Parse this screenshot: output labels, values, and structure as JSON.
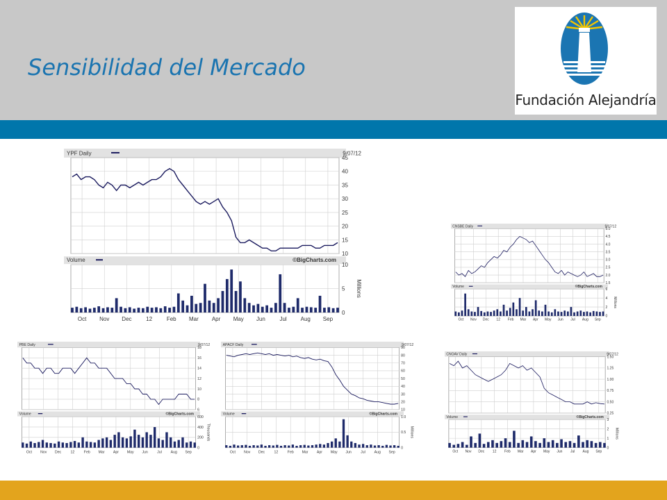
{
  "slide": {
    "title": "Sensibilidad del Mercado",
    "logo_text": "Fundación Alejandría",
    "colors": {
      "header": "#c8c8c8",
      "title": "#1a74b0",
      "band": "#0076ab",
      "footer": "#e3a41d",
      "series": "#1a1a5e",
      "volume": "#1e2a6a"
    }
  },
  "chart_data": [
    {
      "type": "line",
      "title": "YPF Daily",
      "date": "9/07/12",
      "volume_title": "Volume",
      "credit": "©BigCharts.com",
      "unit": "Millions",
      "months": [
        "Oct",
        "Nov",
        "Dec",
        "12",
        "Feb",
        "Mar",
        "Apr",
        "May",
        "Jun",
        "Jul",
        "Aug",
        "Sep"
      ],
      "price_ticks": [
        "45",
        "40",
        "35",
        "30",
        "25",
        "20",
        "15",
        "10"
      ],
      "ylim": [
        10,
        45
      ],
      "volume_ticks": [
        "10",
        "5",
        "0"
      ],
      "vlim": [
        0,
        10
      ],
      "y": [
        38,
        39,
        37,
        38,
        38,
        37,
        35,
        34,
        36,
        35,
        33,
        35,
        35,
        34,
        35,
        36,
        35,
        36,
        37,
        37,
        38,
        40,
        41,
        40,
        37,
        35,
        33,
        31,
        29,
        28,
        29,
        28,
        29,
        30,
        27,
        25,
        22,
        16,
        14,
        14,
        15,
        14,
        13,
        12,
        12,
        11,
        11,
        12,
        12,
        12,
        12,
        12,
        13,
        13,
        13,
        12,
        12,
        13,
        13,
        13,
        14
      ],
      "volume": [
        1.0,
        1.2,
        0.9,
        1.1,
        0.8,
        1.0,
        1.3,
        0.9,
        1.1,
        1.0,
        3.0,
        1.2,
        0.9,
        1.1,
        0.8,
        1.0,
        0.9,
        1.2,
        1.0,
        1.1,
        0.9,
        1.3,
        1.0,
        1.2,
        4.0,
        2.5,
        1.5,
        3.5,
        1.8,
        2.0,
        6.0,
        2.5,
        2.0,
        3.0,
        4.5,
        7.0,
        9.0,
        4.5,
        6.5,
        3.0,
        2.0,
        1.5,
        1.8,
        1.2,
        1.5,
        1.0,
        2.0,
        8.0,
        2.0,
        1.0,
        1.2,
        3.0,
        1.0,
        1.2,
        1.1,
        1.0,
        3.5,
        1.0,
        1.1,
        0.9,
        1.0
      ]
    },
    {
      "type": "line",
      "title": "CNSBE Daily",
      "date": "9/07/12",
      "volume_title": "Volume",
      "credit": "©BigCharts.com",
      "unit": "Millions",
      "months": [
        "Oct",
        "Nov",
        "Dec",
        "12",
        "Feb",
        "Mar",
        "Apr",
        "May",
        "Jun",
        "Jul",
        "Aug",
        "Sep"
      ],
      "price_ticks": [
        "5.0",
        "4.5",
        "4.0",
        "3.5",
        "3.0",
        "2.5",
        "2.0",
        "1.5"
      ],
      "ylim": [
        1.5,
        5.0
      ],
      "volume_ticks": [
        "6",
        "4",
        "2",
        "0"
      ],
      "vlim": [
        0,
        6
      ],
      "y": [
        2.2,
        2.0,
        2.1,
        1.9,
        2.3,
        2.1,
        2.2,
        2.4,
        2.6,
        2.5,
        2.8,
        3.0,
        3.2,
        3.1,
        3.3,
        3.6,
        3.5,
        3.8,
        4.0,
        4.3,
        4.5,
        4.4,
        4.3,
        4.1,
        4.2,
        3.9,
        3.6,
        3.3,
        3.0,
        2.8,
        2.5,
        2.2,
        2.1,
        2.3,
        2.0,
        2.2,
        2.1,
        2.0,
        1.9,
        2.0,
        2.2,
        1.9,
        2.0,
        2.1,
        1.9,
        1.9,
        2.0
      ],
      "volume": [
        1.0,
        0.8,
        1.2,
        5.0,
        1.5,
        1.0,
        0.9,
        2.0,
        1.1,
        0.8,
        1.0,
        0.9,
        1.2,
        1.5,
        1.0,
        2.5,
        1.2,
        1.8,
        3.0,
        1.5,
        4.0,
        1.2,
        2.0,
        1.0,
        1.5,
        3.5,
        1.2,
        1.0,
        2.5,
        1.0,
        0.8,
        1.5,
        1.0,
        0.9,
        1.2,
        1.0,
        2.0,
        0.8,
        1.0,
        1.2,
        0.9,
        1.0,
        0.8,
        1.1,
        1.0,
        0.9,
        1.0
      ]
    },
    {
      "type": "line",
      "title": "PBE Daily",
      "date": "9/07/12",
      "volume_title": "Volume",
      "credit": "©BigCharts.com",
      "unit": "Thousands",
      "months": [
        "Oct",
        "Nov",
        "Dec",
        "12",
        "Feb",
        "Mar",
        "Apr",
        "May",
        "Jun",
        "Jul",
        "Aug",
        "Sep"
      ],
      "price_ticks": [
        "18",
        "16",
        "14",
        "12",
        "10",
        "8",
        "6"
      ],
      "ylim": [
        6,
        18
      ],
      "volume_ticks": [
        "600",
        "400",
        "200",
        "0"
      ],
      "vlim": [
        0,
        600
      ],
      "y": [
        16,
        15,
        15,
        14,
        14,
        13,
        14,
        14,
        13,
        13,
        14,
        14,
        14,
        13,
        14,
        15,
        16,
        15,
        15,
        14,
        14,
        14,
        13,
        12,
        12,
        12,
        11,
        11,
        10,
        10,
        9,
        9,
        8,
        8,
        7,
        8,
        8,
        8,
        8,
        9,
        9,
        9,
        8,
        8
      ],
      "volume": [
        100,
        80,
        120,
        90,
        110,
        150,
        100,
        90,
        80,
        120,
        100,
        90,
        110,
        130,
        100,
        200,
        120,
        110,
        100,
        150,
        180,
        200,
        150,
        250,
        300,
        200,
        180,
        220,
        350,
        250,
        200,
        300,
        250,
        400,
        180,
        150,
        300,
        200,
        120,
        150,
        200,
        100,
        120,
        100
      ]
    },
    {
      "type": "line",
      "title": "APACF Daily",
      "date": "9/07/12",
      "volume_title": "Volume",
      "credit": "©BigCharts.com",
      "unit": "Millions",
      "months": [
        "Oct",
        "Nov",
        "Dec",
        "12",
        "Feb",
        "Mar",
        "Apr",
        "May",
        "Jun",
        "Jul",
        "Aug",
        "Sep"
      ],
      "price_ticks": [
        "90",
        "80",
        "70",
        "60",
        "50",
        "40",
        "30",
        "20",
        "10"
      ],
      "ylim": [
        10,
        90
      ],
      "volume_ticks": [
        "1.0",
        "0.5",
        "0"
      ],
      "vlim": [
        0,
        1.0
      ],
      "y": [
        80,
        79,
        78,
        80,
        81,
        82,
        81,
        82,
        83,
        82,
        81,
        82,
        80,
        81,
        80,
        79,
        80,
        78,
        79,
        77,
        76,
        77,
        75,
        74,
        75,
        73,
        72,
        65,
        55,
        48,
        40,
        35,
        30,
        28,
        25,
        24,
        22,
        21,
        20,
        20,
        19,
        18,
        17,
        17,
        18
      ],
      "volume": [
        0.08,
        0.06,
        0.1,
        0.07,
        0.08,
        0.09,
        0.06,
        0.08,
        0.07,
        0.1,
        0.06,
        0.08,
        0.07,
        0.09,
        0.06,
        0.08,
        0.07,
        0.1,
        0.06,
        0.08,
        0.09,
        0.07,
        0.08,
        0.1,
        0.12,
        0.1,
        0.15,
        0.2,
        0.3,
        0.2,
        0.92,
        0.4,
        0.2,
        0.15,
        0.1,
        0.12,
        0.08,
        0.1,
        0.07,
        0.08,
        0.06,
        0.09,
        0.07,
        0.08,
        0.06
      ]
    },
    {
      "type": "line",
      "title": "CNOAV Daily",
      "date": "9/07/12",
      "volume_title": "Volume",
      "credit": "©BigCharts.com",
      "unit": "Millions",
      "months": [
        "Oct",
        "Nov",
        "Dec",
        "12",
        "Feb",
        "Mar",
        "Apr",
        "May",
        "Jun",
        "Jul",
        "Aug",
        "Sep"
      ],
      "price_ticks": [
        "1.50",
        "1.25",
        "1.00",
        "0.75",
        "0.50",
        "0.25"
      ],
      "ylim": [
        0.25,
        1.5
      ],
      "volume_ticks": [
        "3",
        "2",
        "1",
        "0"
      ],
      "vlim": [
        0,
        3
      ],
      "y": [
        1.35,
        1.3,
        1.4,
        1.25,
        1.3,
        1.2,
        1.1,
        1.05,
        1.0,
        0.95,
        1.0,
        1.05,
        1.1,
        1.2,
        1.35,
        1.3,
        1.25,
        1.3,
        1.2,
        1.25,
        1.15,
        1.05,
        0.8,
        0.7,
        0.65,
        0.6,
        0.55,
        0.5,
        0.5,
        0.45,
        0.45,
        0.45,
        0.5,
        0.45,
        0.48,
        0.46,
        0.45
      ],
      "volume": [
        0.5,
        0.3,
        0.4,
        0.6,
        0.3,
        1.2,
        0.5,
        1.5,
        0.4,
        0.6,
        0.8,
        0.5,
        0.7,
        1.0,
        0.6,
        1.8,
        0.5,
        0.8,
        0.6,
        1.2,
        0.7,
        0.5,
        1.0,
        0.6,
        0.8,
        0.5,
        0.9,
        0.6,
        0.7,
        0.5,
        1.3,
        0.6,
        0.8,
        0.7,
        0.5,
        0.6,
        0.5
      ]
    }
  ]
}
